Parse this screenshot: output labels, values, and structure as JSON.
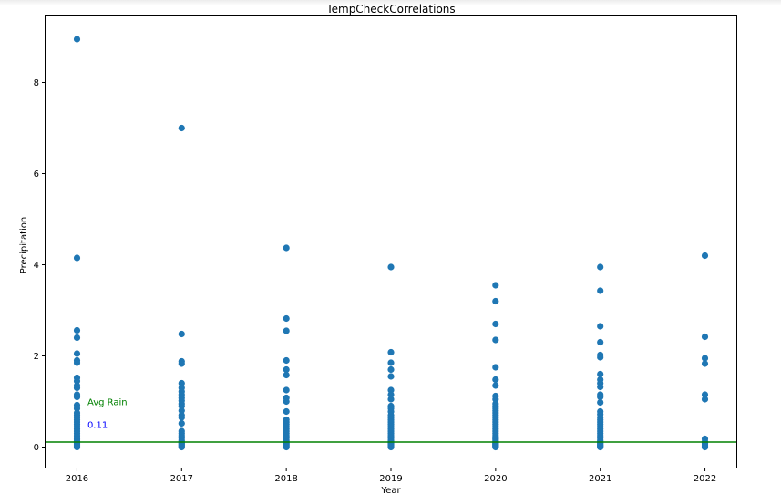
{
  "chart_data": {
    "type": "scatter",
    "title": "TempCheckCorrelations",
    "xlabel": "Year",
    "ylabel": "Precipitation",
    "xlim": [
      2015.7,
      2022.3
    ],
    "ylim": [
      -0.45,
      9.45
    ],
    "x_ticks": [
      "2016",
      "2017",
      "2018",
      "2019",
      "2020",
      "2021",
      "2022"
    ],
    "y_ticks": [
      "0",
      "2",
      "4",
      "6",
      "8"
    ],
    "grid": false,
    "point_color": "#1f77b4",
    "series": [
      {
        "x": [
          2016,
          2016,
          2016,
          2016,
          2016,
          2016,
          2016,
          2016,
          2016,
          2016,
          2016,
          2016,
          2016,
          2016,
          2016,
          2016,
          2016,
          2016,
          2016,
          2016,
          2016,
          2016,
          2016,
          2016,
          2016,
          2016,
          2016,
          2016,
          2016,
          2016,
          2016,
          2016,
          2016,
          2016,
          2016,
          2016,
          2017,
          2017,
          2017,
          2017,
          2017,
          2017,
          2017,
          2017,
          2017,
          2017,
          2017,
          2017,
          2017,
          2017,
          2017,
          2017,
          2017,
          2017,
          2017,
          2017,
          2017,
          2017,
          2017,
          2017,
          2017,
          2017,
          2017,
          2017,
          2018,
          2018,
          2018,
          2018,
          2018,
          2018,
          2018,
          2018,
          2018,
          2018,
          2018,
          2018,
          2018,
          2018,
          2018,
          2018,
          2018,
          2018,
          2018,
          2018,
          2018,
          2018,
          2018,
          2018,
          2018,
          2018,
          2018,
          2019,
          2019,
          2019,
          2019,
          2019,
          2019,
          2019,
          2019,
          2019,
          2019,
          2019,
          2019,
          2019,
          2019,
          2019,
          2019,
          2019,
          2019,
          2019,
          2019,
          2019,
          2019,
          2019,
          2019,
          2019,
          2019,
          2019,
          2019,
          2019,
          2019,
          2020,
          2020,
          2020,
          2020,
          2020,
          2020,
          2020,
          2020,
          2020,
          2020,
          2020,
          2020,
          2020,
          2020,
          2020,
          2020,
          2020,
          2020,
          2020,
          2020,
          2020,
          2020,
          2020,
          2020,
          2020,
          2020,
          2020,
          2020,
          2020,
          2020,
          2020,
          2020,
          2020,
          2020,
          2020,
          2020,
          2021,
          2021,
          2021,
          2021,
          2021,
          2021,
          2021,
          2021,
          2021,
          2021,
          2021,
          2021,
          2021,
          2021,
          2021,
          2021,
          2021,
          2021,
          2021,
          2021,
          2021,
          2021,
          2021,
          2021,
          2021,
          2021,
          2021,
          2021,
          2021,
          2021,
          2021,
          2021,
          2021,
          2021,
          2022,
          2022,
          2022,
          2022,
          2022,
          2022,
          2022,
          2022,
          2022,
          2022,
          2022,
          2022
        ],
        "y": [
          8.95,
          4.15,
          2.56,
          2.4,
          2.05,
          1.9,
          1.85,
          1.52,
          1.45,
          1.35,
          1.3,
          1.15,
          1.1,
          0.92,
          0.85,
          0.75,
          0.7,
          0.65,
          0.6,
          0.55,
          0.5,
          0.45,
          0.4,
          0.35,
          0.3,
          0.25,
          0.22,
          0.18,
          0.15,
          0.12,
          0.1,
          0.08,
          0.06,
          0.04,
          0.02,
          0.0,
          7.0,
          2.48,
          1.88,
          1.83,
          1.4,
          1.3,
          1.22,
          1.15,
          1.08,
          1.02,
          0.95,
          0.9,
          0.8,
          0.7,
          0.65,
          0.52,
          0.35,
          0.3,
          0.25,
          0.2,
          0.15,
          0.12,
          0.1,
          0.08,
          0.06,
          0.04,
          0.02,
          0.0,
          4.37,
          2.82,
          2.55,
          1.9,
          1.7,
          1.58,
          1.25,
          1.08,
          1.0,
          0.78,
          0.6,
          0.55,
          0.5,
          0.45,
          0.4,
          0.35,
          0.3,
          0.25,
          0.2,
          0.15,
          0.12,
          0.1,
          0.08,
          0.06,
          0.04,
          0.02,
          0.0,
          3.95,
          2.08,
          1.85,
          1.7,
          1.55,
          1.25,
          1.15,
          1.05,
          0.9,
          0.85,
          0.78,
          0.7,
          0.65,
          0.6,
          0.55,
          0.5,
          0.45,
          0.4,
          0.35,
          0.3,
          0.25,
          0.2,
          0.15,
          0.12,
          0.1,
          0.08,
          0.06,
          0.04,
          0.02,
          0.0,
          3.55,
          3.2,
          2.7,
          2.35,
          1.75,
          1.48,
          1.35,
          1.12,
          1.05,
          0.95,
          0.9,
          0.85,
          0.8,
          0.75,
          0.7,
          0.65,
          0.6,
          0.55,
          0.5,
          0.45,
          0.4,
          0.35,
          0.3,
          0.25,
          0.2,
          0.18,
          0.15,
          0.12,
          0.1,
          0.08,
          0.07,
          0.06,
          0.04,
          0.03,
          0.02,
          0.0,
          3.95,
          3.43,
          2.65,
          2.3,
          2.02,
          1.97,
          1.6,
          1.48,
          1.4,
          1.32,
          1.15,
          1.1,
          0.98,
          0.78,
          0.72,
          0.65,
          0.6,
          0.55,
          0.5,
          0.45,
          0.4,
          0.35,
          0.3,
          0.25,
          0.2,
          0.15,
          0.12,
          0.1,
          0.08,
          0.06,
          0.04,
          0.03,
          0.02,
          0.0,
          4.2,
          2.42,
          1.95,
          1.83,
          1.15,
          1.05,
          0.18,
          0.12,
          0.08,
          0.05,
          0.02,
          0.0
        ]
      }
    ],
    "hline": {
      "y": 0.11,
      "color": "#008000"
    },
    "annotations": [
      {
        "text": "Avg Rain",
        "x": 2016.1,
        "y": 1.0,
        "color": "#008000"
      },
      {
        "text": "0.11",
        "x": 2016.1,
        "y": 0.5,
        "color": "#0000ff"
      }
    ]
  }
}
